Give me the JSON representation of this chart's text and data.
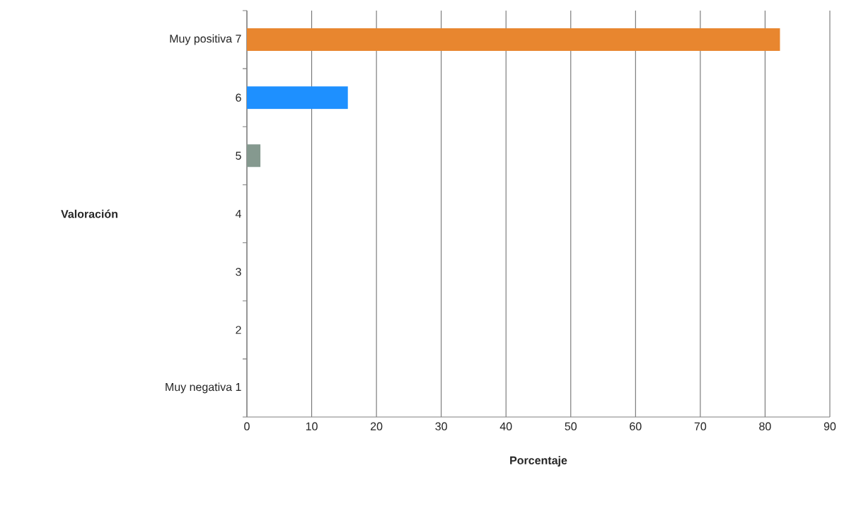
{
  "chart_data": {
    "type": "bar",
    "orientation": "horizontal",
    "xlabel": "Porcentaje",
    "ylabel": "Valoración",
    "categories": [
      "Muy positiva   7",
      "6",
      "5",
      "4",
      "3",
      "2",
      "Muy negativa   1"
    ],
    "values": [
      82.3,
      15.6,
      2.1,
      0,
      0,
      0,
      0
    ],
    "colors": [
      "#e8862f",
      "#1e90ff",
      "#85998f",
      "#85998f",
      "#85998f",
      "#85998f",
      "#85998f"
    ],
    "xlim": [
      0,
      90
    ],
    "xticks": [
      0,
      10,
      20,
      30,
      40,
      50,
      60,
      70,
      80,
      90
    ],
    "grid": "x"
  }
}
